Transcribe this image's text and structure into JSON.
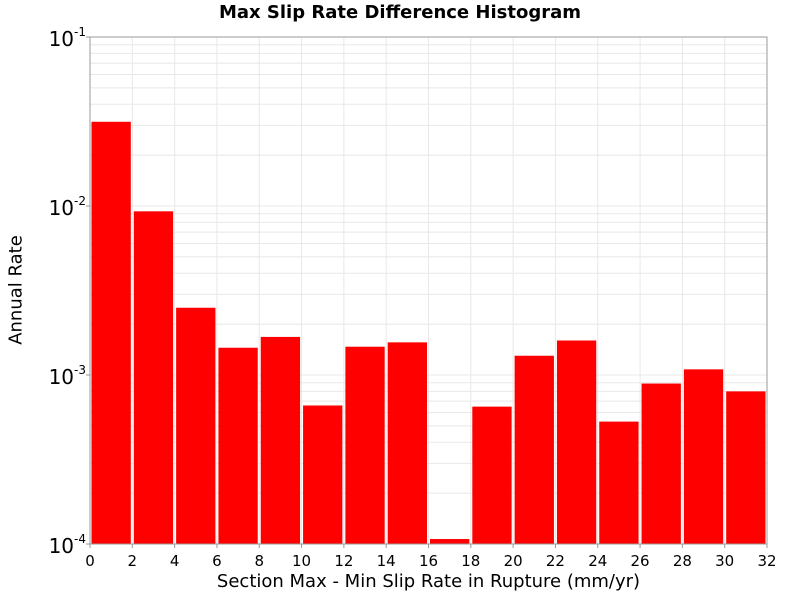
{
  "chart_data": {
    "type": "bar",
    "title": "Max Slip Rate Difference Histogram",
    "xlabel": "Section Max - Min Slip Rate in Rupture (mm/yr)",
    "ylabel": "Annual Rate",
    "yscale": "log",
    "xlim": [
      0,
      32
    ],
    "ylim": [
      0.0001,
      0.1
    ],
    "bin_width": 2,
    "x_ticks": [
      "0",
      "2",
      "4",
      "6",
      "8",
      "10",
      "12",
      "14",
      "16",
      "18",
      "20",
      "22",
      "24",
      "26",
      "28",
      "30",
      "32"
    ],
    "y_ticks": [
      {
        "base": "10",
        "exp": "-4",
        "value": 0.0001
      },
      {
        "base": "10",
        "exp": "-3",
        "value": 0.001
      },
      {
        "base": "10",
        "exp": "-2",
        "value": 0.01
      },
      {
        "base": "10",
        "exp": "-1",
        "value": 0.1
      }
    ],
    "bins": [
      {
        "x_start": 0,
        "x_end": 2,
        "value": 0.0315
      },
      {
        "x_start": 2,
        "x_end": 4,
        "value": 0.0093
      },
      {
        "x_start": 4,
        "x_end": 6,
        "value": 0.0025
      },
      {
        "x_start": 6,
        "x_end": 8,
        "value": 0.00145
      },
      {
        "x_start": 8,
        "x_end": 10,
        "value": 0.00168
      },
      {
        "x_start": 10,
        "x_end": 12,
        "value": 0.00066
      },
      {
        "x_start": 12,
        "x_end": 14,
        "value": 0.00147
      },
      {
        "x_start": 14,
        "x_end": 16,
        "value": 0.00156
      },
      {
        "x_start": 16,
        "x_end": 18,
        "value": 0.000107
      },
      {
        "x_start": 18,
        "x_end": 20,
        "value": 0.00065
      },
      {
        "x_start": 20,
        "x_end": 22,
        "value": 0.0013
      },
      {
        "x_start": 22,
        "x_end": 24,
        "value": 0.0016
      },
      {
        "x_start": 24,
        "x_end": 26,
        "value": 0.00053
      },
      {
        "x_start": 26,
        "x_end": 28,
        "value": 0.00089
      },
      {
        "x_start": 28,
        "x_end": 30,
        "value": 0.00108
      },
      {
        "x_start": 30,
        "x_end": 32,
        "value": 0.0008
      }
    ],
    "bar_color": "#ff0000",
    "grid": true,
    "grid_color": "#e8e8e8",
    "legend": "none"
  }
}
